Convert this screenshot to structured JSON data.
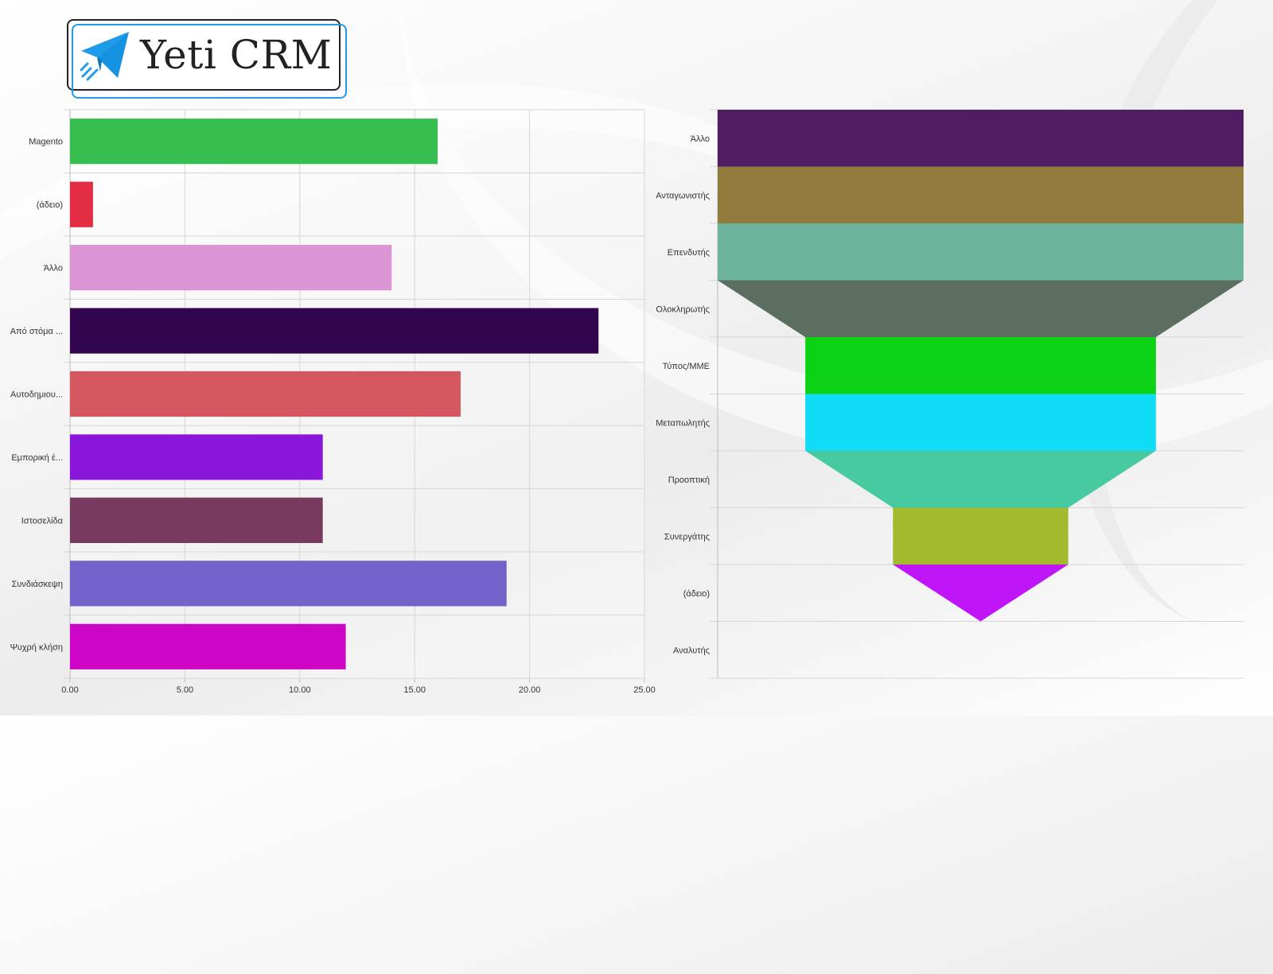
{
  "logo": {
    "text": "Yeti CRM",
    "icon": "paper-plane-icon",
    "brand_color": "#1e9bea"
  },
  "chart_data": [
    {
      "type": "bar",
      "orientation": "horizontal",
      "categories": [
        "Magento",
        "(άδειο)",
        "Άλλο",
        "Από στόμα ...",
        "Αυτοδημιου...",
        "Εμπορική έ...",
        "Ιστοσελίδα",
        "Συνδιάσκεψη",
        "Ψυχρή κλήση"
      ],
      "values": [
        16,
        1,
        14,
        23,
        17,
        11,
        11,
        19,
        12
      ],
      "colors": [
        "#37be4f",
        "#e42d45",
        "#db94d4",
        "#31064e",
        "#d4575f",
        "#8a16dc",
        "#793a60",
        "#7262c9",
        "#cc05c6"
      ],
      "xlim": [
        0,
        25
      ],
      "xticks": [
        "0.00",
        "5.00",
        "10.00",
        "15.00",
        "20.00",
        "25.00"
      ],
      "grid": true,
      "title": "",
      "xlabel": "",
      "ylabel": ""
    },
    {
      "type": "funnel",
      "categories": [
        "Άλλο",
        "Ανταγωνιστής",
        "Επενδυτής",
        "Ολοκληρωτής",
        "Τύπος/ΜΜΕ",
        "Μεταπωλητής",
        "Προοπτική",
        "Συνεργάτης",
        "(άδειο)",
        "Αναλυτής"
      ],
      "values": [
        6,
        6,
        6,
        6,
        4,
        4,
        4,
        2,
        2,
        0
      ],
      "colors": [
        "#511d62",
        "#917c3e",
        "#6cb49c",
        "#5c6e5f",
        "#0cd215",
        "#11dcf7",
        "#47caa1",
        "#a3b92e",
        "#c014f9",
        "#d4ed22"
      ],
      "grid": true,
      "title": ""
    }
  ]
}
